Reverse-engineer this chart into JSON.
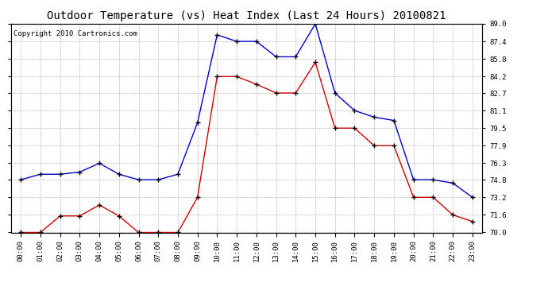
{
  "title": "Outdoor Temperature (vs) Heat Index (Last 24 Hours) 20100821",
  "copyright_text": "Copyright 2010 Cartronics.com",
  "hours": [
    "00:00",
    "01:00",
    "02:00",
    "03:00",
    "04:00",
    "05:00",
    "06:00",
    "07:00",
    "08:00",
    "09:00",
    "10:00",
    "11:00",
    "12:00",
    "13:00",
    "14:00",
    "15:00",
    "16:00",
    "17:00",
    "18:00",
    "19:00",
    "20:00",
    "21:00",
    "22:00",
    "23:00"
  ],
  "blue_data": [
    74.8,
    75.3,
    75.3,
    75.5,
    76.3,
    75.3,
    74.8,
    74.8,
    75.3,
    80.0,
    88.0,
    87.4,
    87.4,
    86.0,
    86.0,
    89.0,
    82.7,
    81.1,
    80.5,
    80.2,
    74.8,
    74.8,
    74.5,
    73.2
  ],
  "red_data": [
    70.0,
    70.0,
    71.5,
    71.5,
    72.5,
    71.5,
    70.0,
    70.0,
    70.0,
    73.2,
    84.2,
    84.2,
    83.5,
    82.7,
    82.7,
    85.5,
    79.5,
    79.5,
    77.9,
    77.9,
    73.2,
    73.2,
    71.6,
    71.0
  ],
  "ylim": [
    70.0,
    89.0
  ],
  "yticks": [
    70.0,
    71.6,
    73.2,
    74.8,
    76.3,
    77.9,
    79.5,
    81.1,
    82.7,
    84.2,
    85.8,
    87.4,
    89.0
  ],
  "blue_color": "#0000CC",
  "red_color": "#CC0000",
  "bg_color": "#FFFFFF",
  "grid_color": "#BBBBBB",
  "title_fontsize": 10,
  "copyright_fontsize": 6.5,
  "tick_fontsize": 6.5
}
